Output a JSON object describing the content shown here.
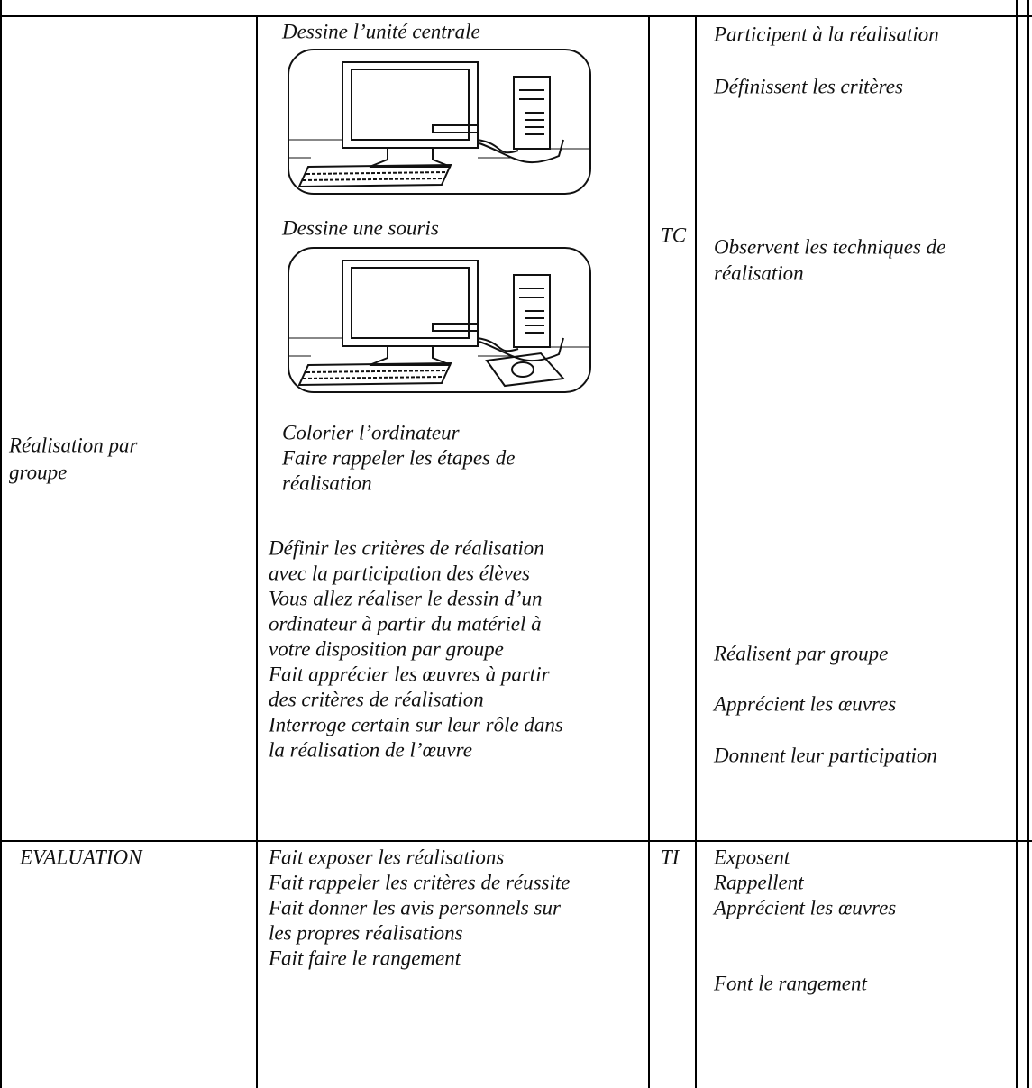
{
  "table": {
    "rows": [
      {
        "cells": [
          {
            "lines": [
              "Réalisation par",
              "groupe"
            ]
          },
          {
            "lines": [
              "Dessine l’unité centrale",
              "Dessine une souris",
              "Colorier l’ordinateur",
              "Faire rappeler les étapes de",
              "réalisation",
              "Définir les critères de réalisation",
              "avec la participation des élèves",
              "Vous allez réaliser le dessin d’un",
              "ordinateur à partir du matériel à",
              "votre disposition par groupe",
              "Fait apprécier les œuvres à partir",
              "des critères de réalisation",
              "Interroge certain sur leur rôle dans",
              "la réalisation de l’œuvre"
            ]
          },
          {
            "lines": [
              "TC"
            ]
          },
          {
            "lines": [
              "Participent à la réalisation",
              "Définissent les critères",
              "Observent les techniques de",
              "réalisation",
              "Réalisent par groupe",
              "Apprécient les œuvres",
              "Donnent leur participation"
            ]
          }
        ]
      },
      {
        "cells": [
          {
            "lines": [
              "EVALUATION"
            ]
          },
          {
            "lines": [
              "Fait exposer les réalisations",
              "Fait rappeler les critères de réussite",
              "Fait donner les avis personnels sur",
              "les propres réalisations",
              "Fait faire le rangement"
            ]
          },
          {
            "lines": [
              "TI"
            ]
          },
          {
            "lines": [
              "Exposent",
              "Rappellent",
              "Apprécient les œuvres",
              "Font le rangement"
            ]
          }
        ]
      }
    ]
  }
}
